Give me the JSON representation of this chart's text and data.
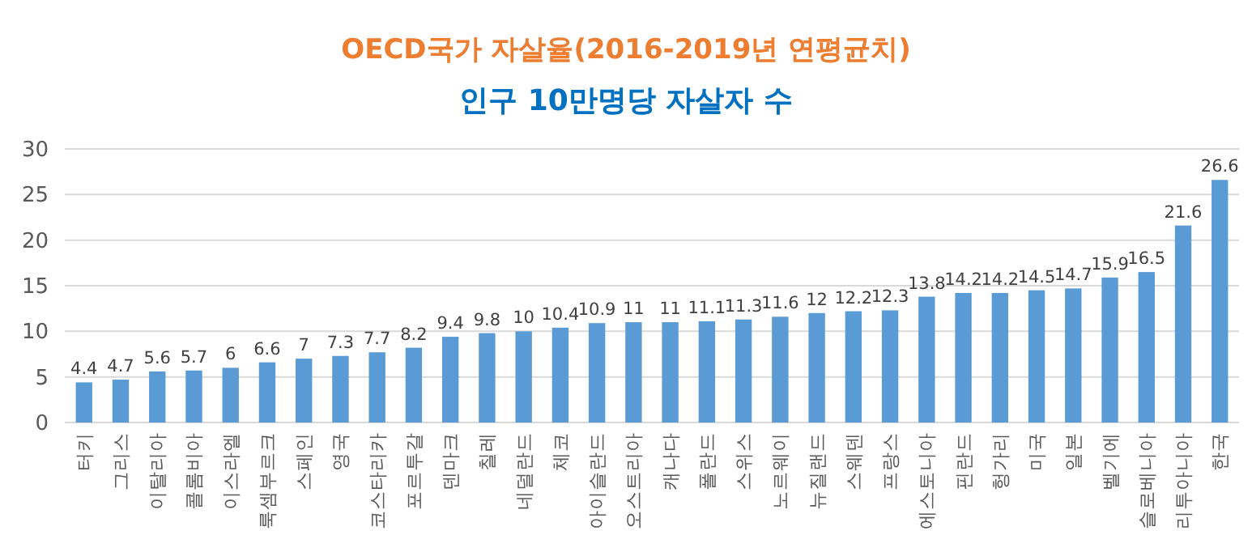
{
  "chart_data": {
    "type": "bar",
    "title": "OECD국가 자살율(2016-2019년 연평균치)",
    "subtitle": "인구 10만명당 자살자 수",
    "categories": [
      "터키",
      "그리스",
      "이탈리아",
      "콜롬비아",
      "이스라엘",
      "룩셈부르크",
      "스페인",
      "영국",
      "코스타리카",
      "포르투갈",
      "덴마크",
      "칠레",
      "네덜란드",
      "체코",
      "아이슬란드",
      "오스트리아",
      "캐나다",
      "폴란드",
      "스위스",
      "노르웨이",
      "뉴질랜드",
      "스웨덴",
      "프랑스",
      "에스토니아",
      "핀란드",
      "헝가리",
      "미국",
      "일본",
      "벨기에",
      "슬로베니아",
      "리투아니아",
      "한국"
    ],
    "values": [
      4.4,
      4.7,
      5.6,
      5.7,
      6,
      6.6,
      7,
      7.3,
      7.7,
      8.2,
      9.4,
      9.8,
      10,
      10.4,
      10.9,
      11,
      11,
      11.1,
      11.3,
      11.6,
      12,
      12.2,
      12.3,
      13.8,
      14.2,
      14.2,
      14.5,
      14.7,
      15.9,
      16.5,
      21.6,
      26.6
    ],
    "color": "#5b9bd5",
    "ylim": [
      0,
      30
    ],
    "yticks": [
      0,
      5,
      10,
      15,
      20,
      25,
      30
    ],
    "grid": "y",
    "data_labels": true
  }
}
